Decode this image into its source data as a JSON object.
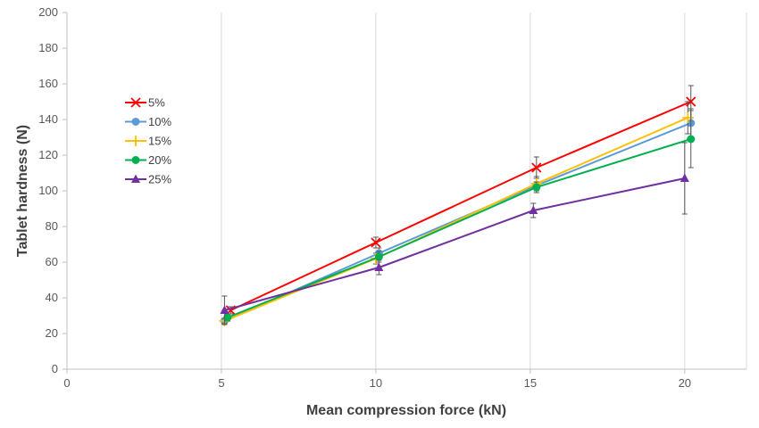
{
  "chart_data": {
    "type": "scatter",
    "title": "",
    "xlabel": "Mean compression force (kN)",
    "ylabel": "Tablet hardness (N)",
    "xlim": [
      0,
      22
    ],
    "ylim": [
      0,
      200
    ],
    "x_ticks": [
      0,
      5,
      10,
      15,
      20
    ],
    "y_ticks": [
      0,
      20,
      40,
      60,
      80,
      100,
      120,
      140,
      160,
      180,
      200
    ],
    "grid": "vertical",
    "legend_position": "left",
    "series": [
      {
        "name": "5%",
        "color": "#ff0000",
        "marker": "x",
        "x": [
          5.3,
          10.0,
          15.2,
          20.2
        ],
        "y": [
          33,
          71,
          113,
          150
        ],
        "err": [
          2,
          3,
          6,
          9
        ]
      },
      {
        "name": "10%",
        "color": "#5b9bd5",
        "marker": "circle",
        "x": [
          5.1,
          10.1,
          15.2,
          20.2
        ],
        "y": [
          27,
          65,
          103,
          138
        ],
        "err": [
          1.5,
          3,
          4,
          8
        ]
      },
      {
        "name": "15%",
        "color": "#ffc000",
        "marker": "plus",
        "x": [
          5.1,
          10.0,
          15.2,
          20.1
        ],
        "y": [
          27,
          62,
          104,
          141
        ],
        "err": [
          1.5,
          3,
          4,
          9
        ]
      },
      {
        "name": "20%",
        "color": "#00b050",
        "marker": "circle",
        "x": [
          5.2,
          10.1,
          15.2,
          20.2
        ],
        "y": [
          29,
          63,
          102,
          129
        ],
        "err": [
          2,
          3,
          3,
          16
        ]
      },
      {
        "name": "25%",
        "color": "#7030a0",
        "marker": "triangle",
        "x": [
          5.1,
          10.1,
          15.1,
          20.0
        ],
        "y": [
          33,
          57,
          89,
          107
        ],
        "err": [
          8,
          4,
          4,
          20
        ]
      }
    ]
  }
}
